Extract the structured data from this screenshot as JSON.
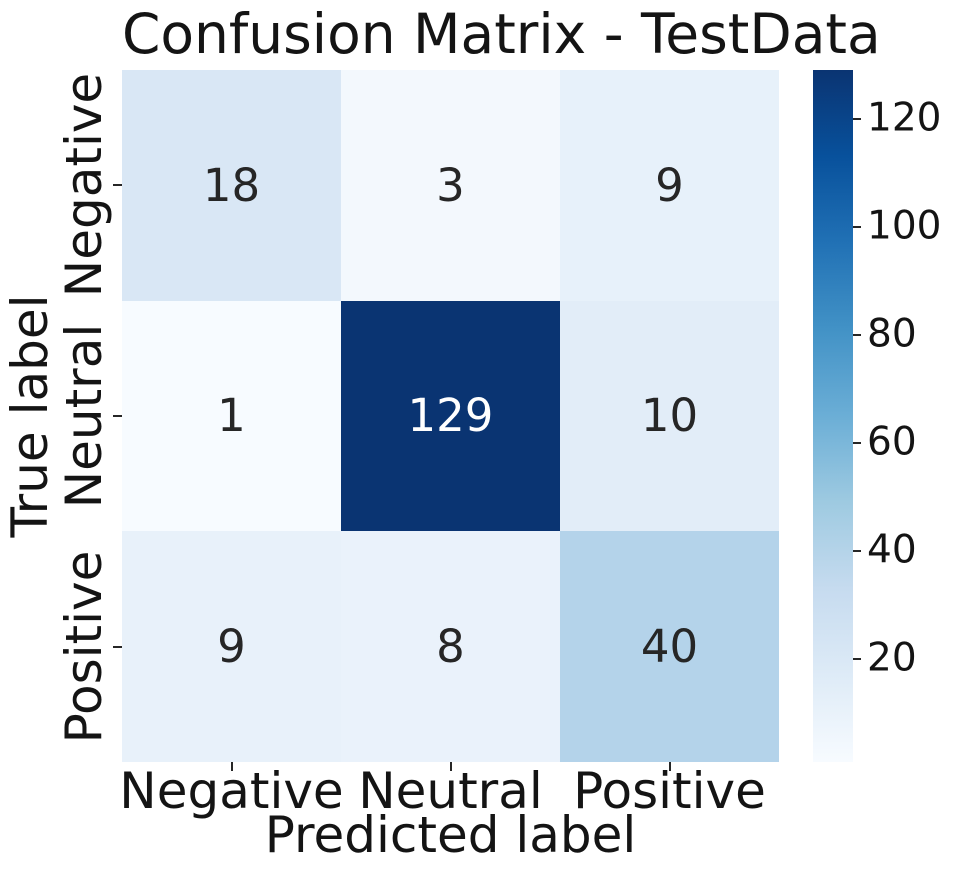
{
  "figure": {
    "background": "#ffffff"
  },
  "chart_data": {
    "type": "heatmap",
    "title": "Confusion Matrix - TestData",
    "xlabel": "Predicted label",
    "ylabel": "True label",
    "x_tick_labels": [
      "Negative",
      "Neutral",
      "Positive"
    ],
    "y_tick_labels": [
      "Negative",
      "Neutral",
      "Positive"
    ],
    "matrix": [
      [
        18,
        3,
        9
      ],
      [
        1,
        129,
        10
      ],
      [
        9,
        8,
        40
      ]
    ],
    "vmin": 1,
    "vmax": 129,
    "colormap": "Blues",
    "annotated": true,
    "grid": false,
    "legend_position": "right-colorbar",
    "colorbar_ticks": [
      20,
      40,
      60,
      80,
      100,
      120
    ],
    "cell_colors": [
      [
        "#d9e7f5",
        "#f3f8fd",
        "#e7f1fa"
      ],
      [
        "#f7fbff",
        "#0a3472",
        "#e2edf8"
      ],
      [
        "#e8f1fa",
        "#eaf2fb",
        "#b4d3ea"
      ]
    ],
    "cell_text_colors": [
      [
        "#262626",
        "#262626",
        "#262626"
      ],
      [
        "#262626",
        "#ffffff",
        "#262626"
      ],
      [
        "#262626",
        "#262626",
        "#262626"
      ]
    ],
    "colormap_stops": [
      "#f7fbff",
      "#deebf7",
      "#c6dbef",
      "#9ecae1",
      "#6baed6",
      "#4292c6",
      "#2171b5",
      "#08519c",
      "#0a3472"
    ]
  },
  "colors": {
    "text": "#141414",
    "annotation_dark": "#262626",
    "annotation_light": "#ffffff",
    "tick": "#262626"
  }
}
